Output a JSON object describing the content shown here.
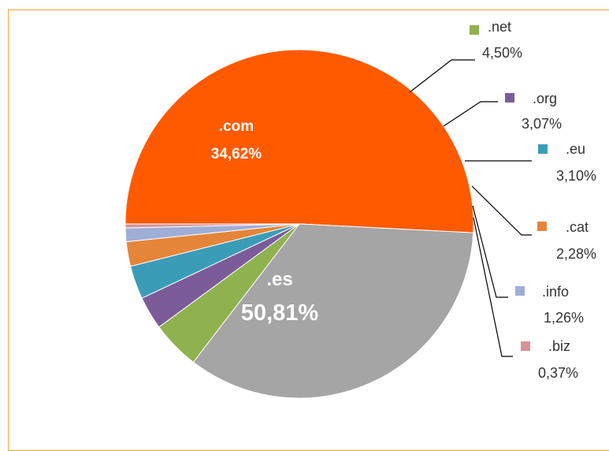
{
  "chart_data": {
    "type": "pie",
    "title": "",
    "series": [
      {
        "slices": [
          {
            "label": ".es",
            "value_text": "50,81%",
            "value": 50.81,
            "color": "#ff5a00"
          },
          {
            "label": ".com",
            "value_text": "34,62%",
            "value": 34.62,
            "color": "#a5a5a5"
          },
          {
            "label": ".net",
            "value_text": "4,50%",
            "value": 4.5,
            "color": "#8fb14e"
          },
          {
            "label": ".org",
            "value_text": "3,07%",
            "value": 3.07,
            "color": "#7b5c99"
          },
          {
            "label": ".eu",
            "value_text": "3,10%",
            "value": 3.1,
            "color": "#3b9cb8"
          },
          {
            "label": ".cat",
            "value_text": "2,28%",
            "value": 2.28,
            "color": "#e5853a"
          },
          {
            "label": ".info",
            "value_text": "1,26%",
            "value": 1.26,
            "color": "#9faed6"
          },
          {
            "label": ".biz",
            "value_text": "0,37%",
            "value": 0.37,
            "color": "#d69397"
          }
        ]
      }
    ],
    "legend": "labels with leader lines",
    "grid": false
  }
}
